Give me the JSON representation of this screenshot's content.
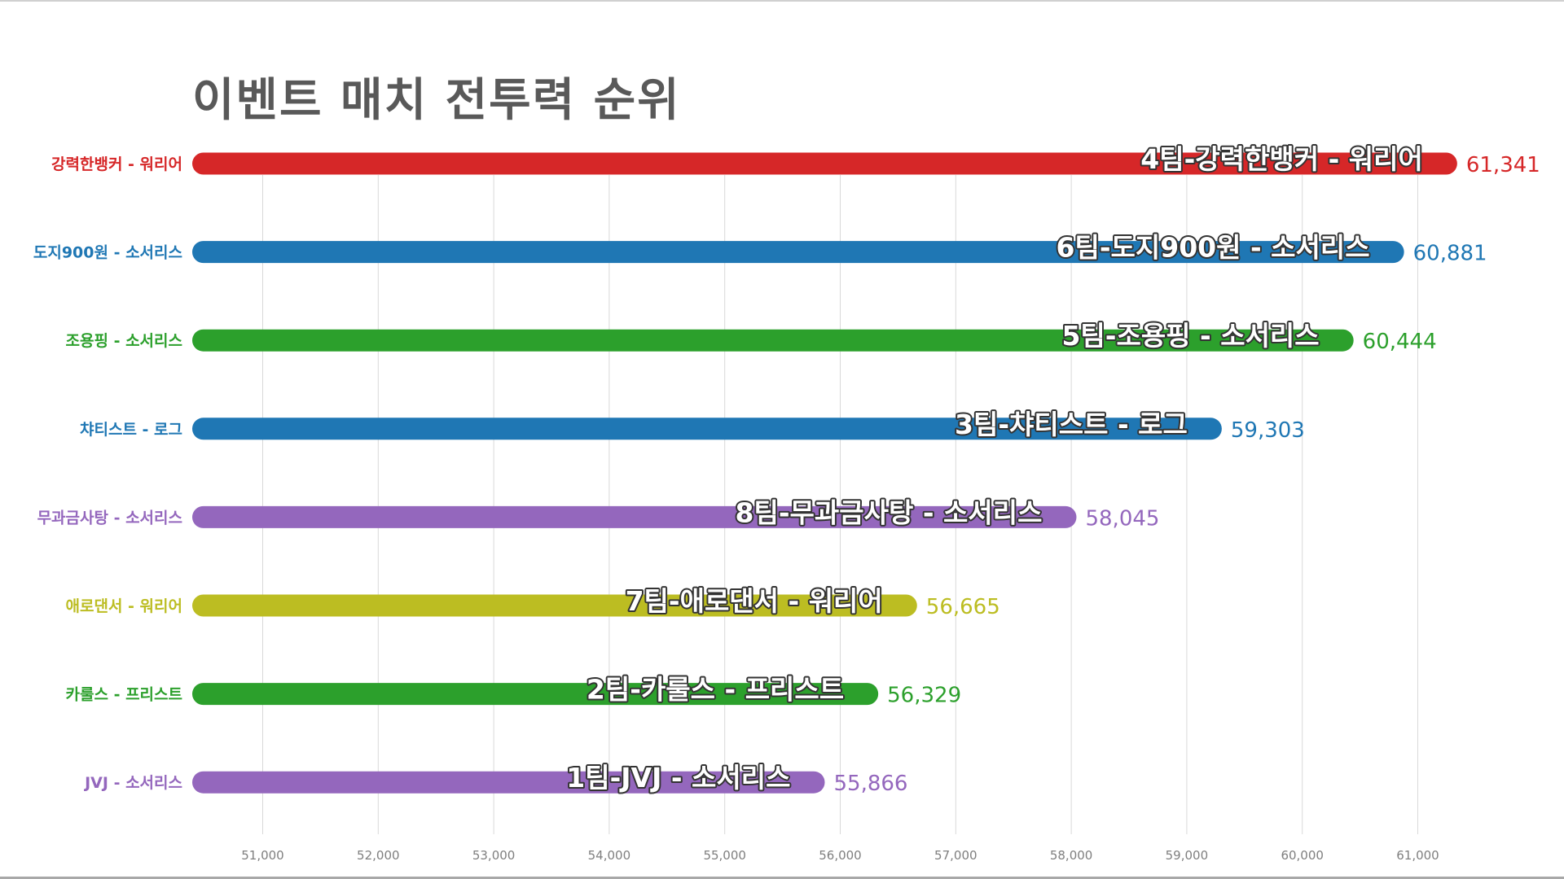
{
  "chart_data": {
    "type": "bar",
    "orientation": "horizontal",
    "title": "이벤트 매치 전투력 순위",
    "xlabel": "",
    "ylabel": "",
    "xlim": [
      50390,
      61900
    ],
    "grid": true,
    "xticks": [
      "51,000",
      "52,000",
      "53,000",
      "54,000",
      "55,000",
      "56,000",
      "57,000",
      "58,000",
      "59,000",
      "60,000",
      "61,000"
    ],
    "xtick_values": [
      51000,
      52000,
      53000,
      54000,
      55000,
      56000,
      57000,
      58000,
      59000,
      60000,
      61000
    ],
    "categories": [
      "강력한뱅커 - 워리어",
      "도지900원 - 소서리스",
      "조용핑 - 소서리스",
      "챠티스트 - 로그",
      "무과금사탕 - 소서리스",
      "애로댄서 - 워리어",
      "카룰스 - 프리스트",
      "JVJ - 소서리스"
    ],
    "inner_labels": [
      "4팀-강력한뱅커 - 워리어",
      "6팀-도지900원 - 소서리스",
      "5팀-조용핑 - 소서리스",
      "3팀-챠티스트 - 로그",
      "8팀-무과금사탕 - 소서리스",
      "7팀-애로댄서 - 워리어",
      "2팀-카룰스 - 프리스트",
      "1팀-JVJ - 소서리스"
    ],
    "values": [
      61341,
      60881,
      60444,
      59303,
      58045,
      56665,
      56329,
      55866
    ],
    "value_labels": [
      "61,341",
      "60,881",
      "60,444",
      "59,303",
      "58,045",
      "56,665",
      "56,329",
      "55,866"
    ],
    "colors": [
      "#d62728",
      "#1f77b4",
      "#2ca02c",
      "#1f77b4",
      "#9467bd",
      "#bcbd22",
      "#2ca02c",
      "#9467bd"
    ]
  }
}
